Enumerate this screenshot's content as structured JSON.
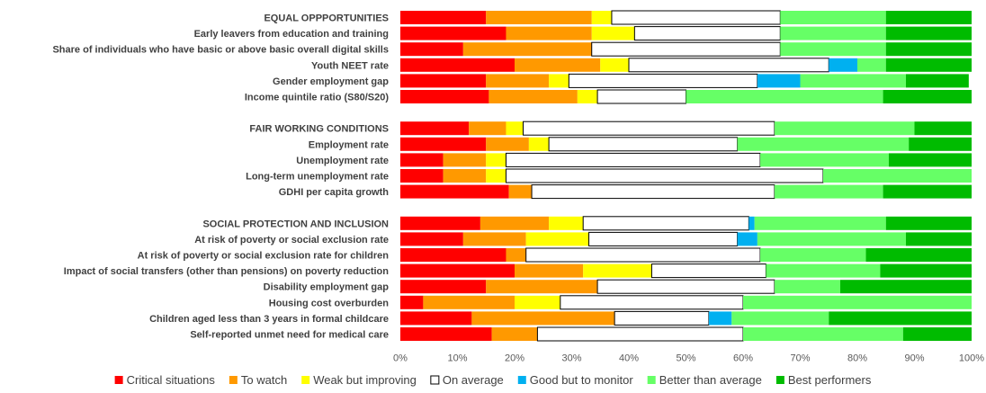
{
  "chart_data": {
    "type": "bar",
    "orientation": "horizontal",
    "stacked": true,
    "x_axis_ticks": [
      "0%",
      "10%",
      "20%",
      "30%",
      "40%",
      "50%",
      "60%",
      "70%",
      "80%",
      "90%",
      "100%"
    ],
    "xlim": [
      0,
      100
    ],
    "grid": false,
    "legend_position": "bottom",
    "categories": [
      {
        "label": "EQUAL OPPPORTUNITIES",
        "values": [
          15,
          18.5,
          3.5,
          29.5,
          0,
          18.5,
          15
        ]
      },
      {
        "label": "Early leavers from education and training",
        "values": [
          18.5,
          15,
          7.5,
          25.5,
          0,
          18.5,
          15
        ]
      },
      {
        "label": "Share of individuals who have basic or above basic overall digital skills",
        "values": [
          11,
          22.5,
          0,
          33,
          0,
          18.5,
          15
        ]
      },
      {
        "label": "Youth NEET rate",
        "values": [
          20,
          15,
          5,
          35,
          5,
          5,
          15
        ]
      },
      {
        "label": "Gender employment gap",
        "values": [
          15,
          11,
          3.5,
          33,
          7.5,
          18.5,
          11
        ]
      },
      {
        "label": "Income quintile ratio (S80/S20)",
        "values": [
          15.5,
          15.5,
          3.5,
          15.5,
          0,
          34.5,
          15.5
        ]
      },
      {
        "label": "",
        "values": []
      },
      {
        "label": "FAIR WORKING CONDITIONS",
        "values": [
          12,
          6.5,
          3,
          44,
          0,
          24.5,
          10
        ]
      },
      {
        "label": "Employment rate",
        "values": [
          15,
          7.5,
          3.5,
          33,
          0,
          30,
          11
        ]
      },
      {
        "label": "Unemployment rate",
        "values": [
          7.5,
          7.5,
          3.5,
          44.5,
          0,
          22.5,
          14.5
        ]
      },
      {
        "label": "Long-term unemployment rate",
        "values": [
          7.5,
          7.5,
          3.5,
          55.5,
          0,
          26,
          0
        ]
      },
      {
        "label": "GDHI per capita growth",
        "values": [
          19,
          4,
          0,
          42.5,
          0,
          19,
          15.5
        ]
      },
      {
        "label": "",
        "values": []
      },
      {
        "label": "SOCIAL PROTECTION AND INCLUSION",
        "values": [
          14,
          12,
          6,
          29,
          1,
          23,
          15
        ]
      },
      {
        "label": "At risk of poverty or social exclusion rate",
        "values": [
          11,
          11,
          11,
          26,
          3.5,
          26,
          11.5
        ]
      },
      {
        "label": "At risk of poverty or social exclusion rate for children",
        "values": [
          18.5,
          3.5,
          0,
          41,
          0,
          18.5,
          18.5
        ]
      },
      {
        "label": "Impact of social transfers (other than pensions) on poverty reduction",
        "values": [
          20,
          12,
          12,
          20,
          0,
          20,
          16
        ]
      },
      {
        "label": "Disability employment gap",
        "values": [
          15,
          19.5,
          0,
          31,
          0,
          11.5,
          23
        ]
      },
      {
        "label": "Housing cost overburden",
        "values": [
          4,
          16,
          8,
          32,
          0,
          40,
          0
        ]
      },
      {
        "label": "Children aged less than 3 years in formal childcare",
        "values": [
          12.5,
          25,
          0,
          16.5,
          4,
          17,
          25
        ]
      },
      {
        "label": "Self-reported unmet need for medical care",
        "values": [
          16,
          8,
          0,
          36,
          0,
          28,
          12
        ]
      }
    ],
    "series": [
      {
        "name": "Critical situations",
        "color": "#ff0000"
      },
      {
        "name": "To watch",
        "color": "#ff9900"
      },
      {
        "name": "Weak but improving",
        "color": "#ffff00"
      },
      {
        "name": "On average",
        "color": "#ffffff"
      },
      {
        "name": "Good but to monitor",
        "color": "#00b0f0"
      },
      {
        "name": "Better than average",
        "color": "#66ff66"
      },
      {
        "name": "Best performers",
        "color": "#00bb00"
      }
    ]
  }
}
